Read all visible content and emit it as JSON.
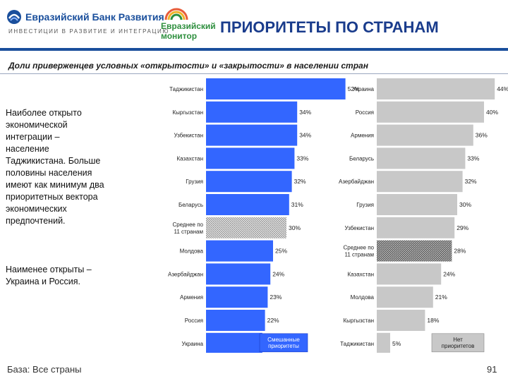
{
  "header": {
    "bank_name": "Евразийский Банк Развития",
    "bank_tagline": "ИНВЕСТИЦИИ В РАЗВИТИЕ И ИНТЕГРАЦИЮ",
    "monitor_line1": "Евразийский",
    "monitor_line2": "монитор",
    "title": "ПРИОРИТЕТЫ ПО СТРАНАМ"
  },
  "subtitle": "Доли приверженцев условных «открытости» и «закрытости» в населении стран",
  "left_text": {
    "block1": "Наиболее открыто экономической интеграции – население Таджикистана. Больше половины населения имеют как минимум два приоритетных вектора экономических предпочтений.",
    "block2": "Наименее открыты – Украина и Россия."
  },
  "footer": {
    "base": "База: Все страны",
    "page": "91"
  },
  "colors": {
    "blue": "#3366ff",
    "grey": "#c8c8c8",
    "hatched": "#9a9a9a",
    "accent": "#1a3c8c"
  },
  "chart_data": [
    {
      "type": "bar",
      "orientation": "horizontal",
      "color": "#3366ff",
      "categories": [
        "Таджикистан",
        "Кыргызстан",
        "Узбекистан",
        "Казахстан",
        "Грузия",
        "Беларусь",
        "Среднее по\n11 странам",
        "Молдова",
        "Азербайджан",
        "Армения",
        "Россия",
        "Украина"
      ],
      "values": [
        52,
        34,
        34,
        33,
        32,
        31,
        30,
        25,
        24,
        23,
        22,
        21
      ],
      "labels": [
        "52%",
        "34%",
        "34%",
        "33%",
        "32%",
        "31%",
        "30%",
        "25%",
        "24%",
        "23%",
        "22%",
        "21%"
      ],
      "highlight_index": 6,
      "legend": "Смешанные приоритеты"
    },
    {
      "type": "bar",
      "orientation": "horizontal",
      "color": "#c8c8c8",
      "categories": [
        "Украина",
        "Россия",
        "Армения",
        "Беларусь",
        "Азербайджан",
        "Грузия",
        "Узбекистан",
        "Среднее по\n11 странам",
        "Казахстан",
        "Молдова",
        "Кыргызстан",
        "Таджикистан"
      ],
      "values": [
        44,
        40,
        36,
        33,
        32,
        30,
        29,
        28,
        24,
        21,
        18,
        5
      ],
      "labels": [
        "44%",
        "40%",
        "36%",
        "33%",
        "32%",
        "30%",
        "29%",
        "28%",
        "24%",
        "21%",
        "18%",
        "5%"
      ],
      "highlight_index": 7,
      "legend": "Нет приоритетов"
    }
  ]
}
